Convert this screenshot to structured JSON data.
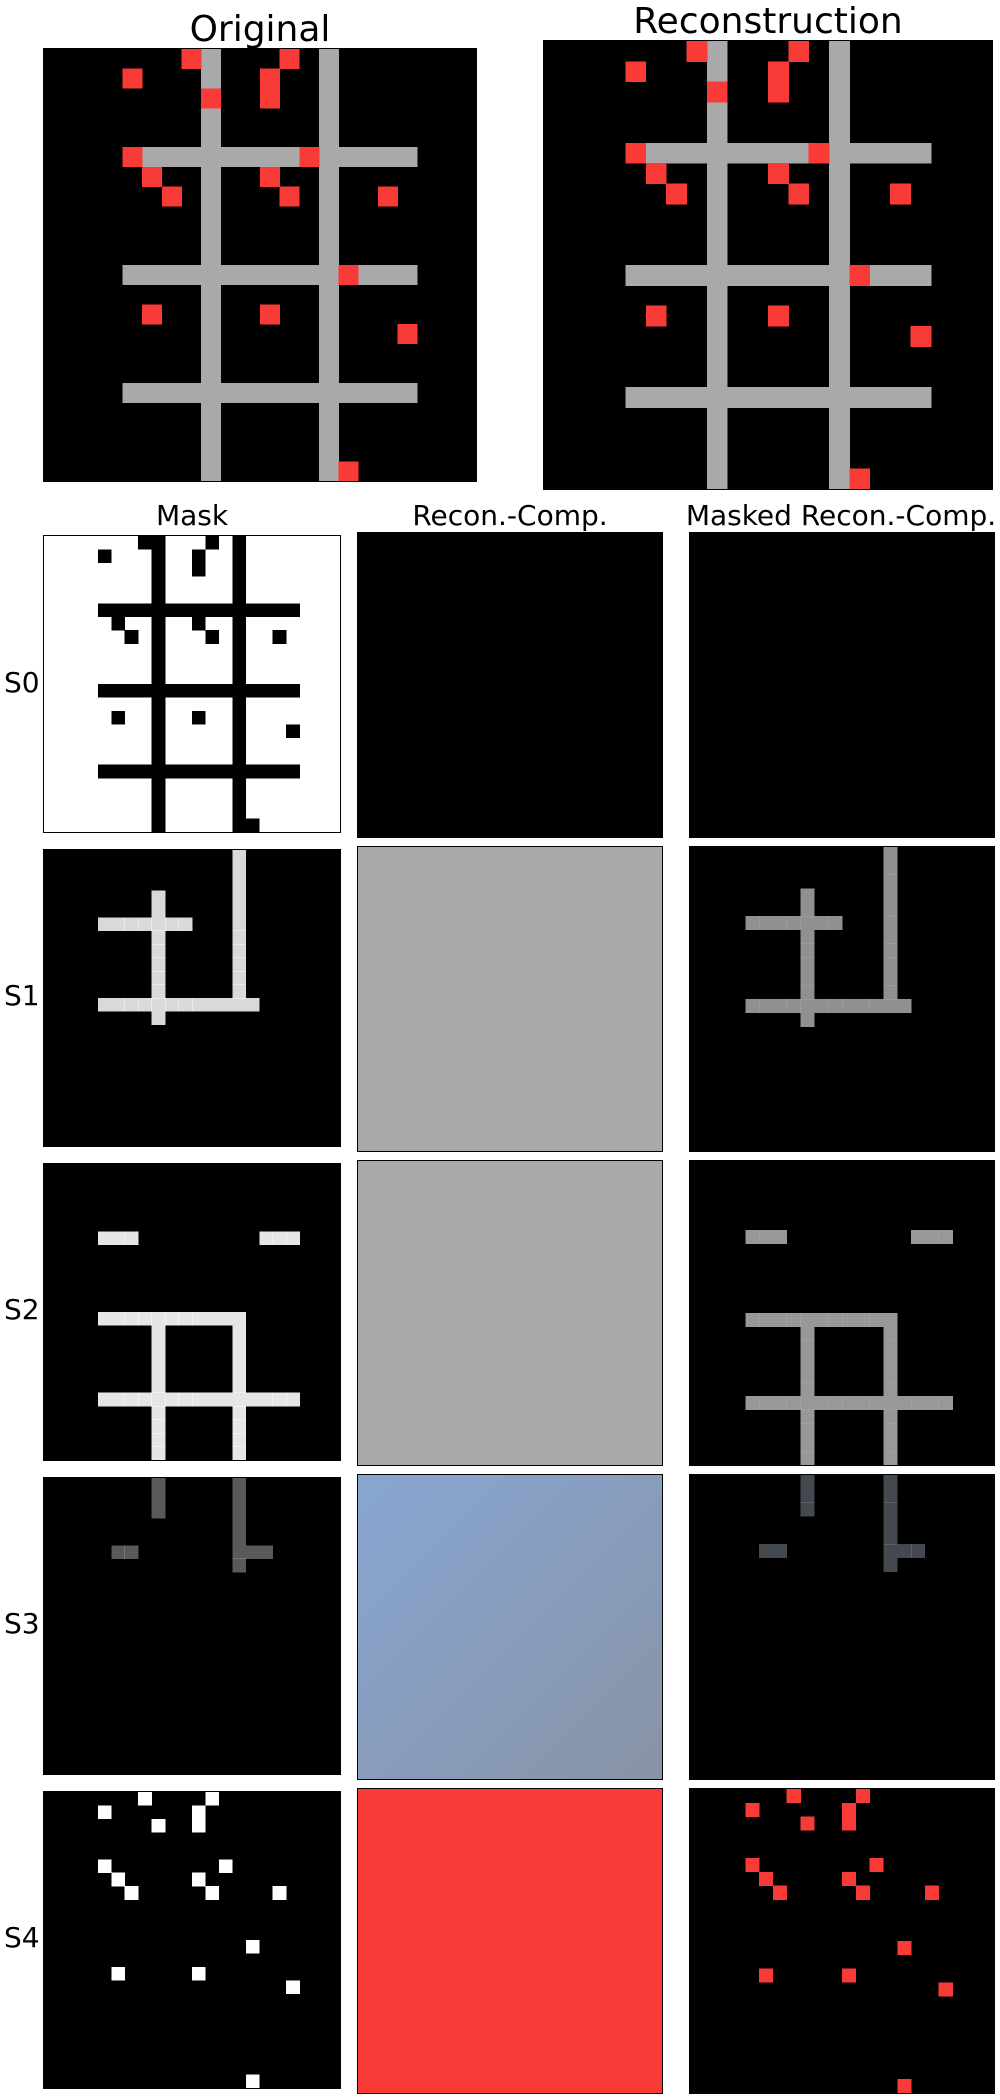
{
  "titles": {
    "original": "Original",
    "reconstruction": "Reconstruction"
  },
  "columns": {
    "mask": "Mask",
    "recon_comp": "Recon.-Comp.",
    "masked_recon_comp": "Masked Recon.-Comp."
  },
  "rows": [
    {
      "label": "S0",
      "component_color": "#000000"
    },
    {
      "label": "S1",
      "component_color": "#a9a9a9"
    },
    {
      "label": "S2",
      "component_color": "#a9a9a9"
    },
    {
      "label": "S3",
      "component_color": "gradient"
    },
    {
      "label": "S4",
      "component_color": "#f93b37"
    }
  ],
  "colors": {
    "background": "#000000",
    "grid_gray": "#a9a9a9",
    "square_red": "#f93b37",
    "mask_white": "#ffffff",
    "gradient_start": "#88a6d2",
    "gradient_end": "#8893a6"
  },
  "scene": {
    "grid_size": 22,
    "gray_cells": [
      [
        0,
        8
      ],
      [
        0,
        14
      ],
      [
        1,
        8
      ],
      [
        1,
        14
      ],
      [
        2,
        8
      ],
      [
        2,
        14
      ],
      [
        3,
        8
      ],
      [
        3,
        14
      ],
      [
        4,
        8
      ],
      [
        4,
        14
      ],
      [
        5,
        4
      ],
      [
        5,
        5
      ],
      [
        5,
        6
      ],
      [
        5,
        7
      ],
      [
        5,
        8
      ],
      [
        5,
        9
      ],
      [
        5,
        10
      ],
      [
        5,
        11
      ],
      [
        5,
        12
      ],
      [
        5,
        13
      ],
      [
        5,
        14
      ],
      [
        5,
        15
      ],
      [
        5,
        16
      ],
      [
        5,
        17
      ],
      [
        5,
        18
      ],
      [
        6,
        8
      ],
      [
        6,
        14
      ],
      [
        7,
        8
      ],
      [
        7,
        14
      ],
      [
        8,
        8
      ],
      [
        8,
        14
      ],
      [
        9,
        8
      ],
      [
        9,
        14
      ],
      [
        10,
        8
      ],
      [
        10,
        14
      ],
      [
        11,
        4
      ],
      [
        11,
        5
      ],
      [
        11,
        6
      ],
      [
        11,
        7
      ],
      [
        11,
        8
      ],
      [
        11,
        9
      ],
      [
        11,
        10
      ],
      [
        11,
        11
      ],
      [
        11,
        12
      ],
      [
        11,
        13
      ],
      [
        11,
        14
      ],
      [
        11,
        15
      ],
      [
        11,
        16
      ],
      [
        11,
        17
      ],
      [
        11,
        18
      ],
      [
        12,
        8
      ],
      [
        12,
        14
      ],
      [
        13,
        8
      ],
      [
        13,
        14
      ],
      [
        14,
        8
      ],
      [
        14,
        14
      ],
      [
        15,
        8
      ],
      [
        15,
        14
      ],
      [
        16,
        8
      ],
      [
        16,
        14
      ],
      [
        17,
        4
      ],
      [
        17,
        5
      ],
      [
        17,
        6
      ],
      [
        17,
        7
      ],
      [
        17,
        8
      ],
      [
        17,
        9
      ],
      [
        17,
        10
      ],
      [
        17,
        11
      ],
      [
        17,
        12
      ],
      [
        17,
        13
      ],
      [
        17,
        14
      ],
      [
        17,
        15
      ],
      [
        17,
        16
      ],
      [
        17,
        17
      ],
      [
        17,
        18
      ],
      [
        18,
        8
      ],
      [
        18,
        14
      ],
      [
        19,
        8
      ],
      [
        19,
        14
      ],
      [
        20,
        8
      ],
      [
        20,
        14
      ],
      [
        21,
        8
      ],
      [
        21,
        14
      ]
    ],
    "red_cells": [
      [
        0,
        7
      ],
      [
        0,
        12
      ],
      [
        1,
        4
      ],
      [
        1,
        11
      ],
      [
        2,
        8
      ],
      [
        2,
        11
      ],
      [
        5,
        4
      ],
      [
        5,
        13
      ],
      [
        6,
        5
      ],
      [
        6,
        11
      ],
      [
        7,
        6
      ],
      [
        7,
        12
      ],
      [
        7,
        17
      ],
      [
        11,
        15
      ],
      [
        13,
        5
      ],
      [
        13,
        11
      ],
      [
        14,
        18
      ],
      [
        21,
        15
      ]
    ]
  }
}
